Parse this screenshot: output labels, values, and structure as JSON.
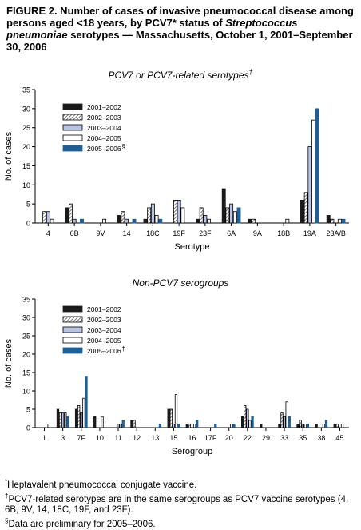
{
  "figure": {
    "title_prefix": "FIGURE 2. Number of cases of invasive pneumococcal disease among persons aged <18 years, by PCV7* status of ",
    "title_species": "Streptococcus pneumoniae",
    "title_suffix": " serotypes — Massachusetts, October 1, 2001–September 30, 2006"
  },
  "chart_data": [
    {
      "type": "bar",
      "title": "PCV7 or PCV7-related serotypes",
      "title_mark": "†",
      "xlabel": "Serotype",
      "ylabel": "No. of cases",
      "ylim": [
        0,
        35
      ],
      "yticks": [
        0,
        5,
        10,
        15,
        20,
        25,
        30,
        35
      ],
      "legend_position": "top-left",
      "categories": [
        "4",
        "6B",
        "9V",
        "14",
        "18C",
        "19F",
        "23F",
        "6A",
        "9A",
        "18B",
        "19A",
        "23A/B"
      ],
      "series": [
        {
          "name": "2001–2002",
          "values": [
            0,
            4,
            0,
            2,
            1,
            0,
            1,
            9,
            1,
            0,
            6,
            2
          ]
        },
        {
          "name": "2002–2003",
          "values": [
            3,
            5,
            0,
            3,
            4,
            6,
            4,
            4,
            1,
            0,
            8,
            1
          ]
        },
        {
          "name": "2003–2004",
          "values": [
            3,
            1,
            0,
            1,
            5,
            6,
            2,
            5,
            0,
            0,
            20,
            0
          ]
        },
        {
          "name": "2004–2005",
          "values": [
            1,
            0,
            1,
            0,
            2,
            4,
            1,
            3,
            0,
            1,
            27,
            1
          ]
        },
        {
          "name": "2005–2006",
          "name_mark": "§",
          "values": [
            0,
            1,
            0,
            1,
            1,
            0,
            0,
            4,
            0,
            0,
            30,
            1
          ]
        }
      ]
    },
    {
      "type": "bar",
      "title": "Non-PCV7 serogroups",
      "xlabel": "Serogroup",
      "ylabel": "No. of cases",
      "ylim": [
        0,
        35
      ],
      "yticks": [
        0,
        5,
        10,
        15,
        20,
        25,
        30,
        35
      ],
      "legend_position": "top-left",
      "categories": [
        "1",
        "3",
        "7F",
        "10",
        "11",
        "12",
        "13",
        "15",
        "16",
        "17F",
        "20",
        "22",
        "29",
        "33",
        "35",
        "38",
        "45"
      ],
      "series": [
        {
          "name": "2001–2002",
          "values": [
            0,
            5,
            5,
            3,
            0,
            2,
            0,
            5,
            1,
            0,
            0,
            3,
            1,
            1,
            1,
            1,
            1
          ]
        },
        {
          "name": "2002–2003",
          "values": [
            0,
            4,
            6,
            0,
            0,
            2,
            0,
            5,
            1,
            0,
            0,
            6,
            0,
            4,
            2,
            0,
            1
          ]
        },
        {
          "name": "2003–2004",
          "values": [
            0,
            4,
            4,
            0,
            1,
            0,
            0,
            1,
            0,
            0,
            0,
            5,
            0,
            3,
            1,
            0,
            0
          ]
        },
        {
          "name": "2004–2005",
          "values": [
            1,
            4,
            8,
            3,
            1,
            0,
            0,
            9,
            1,
            0,
            1,
            2,
            0,
            7,
            1,
            1,
            1
          ]
        },
        {
          "name": "2005–2006",
          "name_mark": "†",
          "values": [
            0,
            3,
            14,
            0,
            2,
            0,
            1,
            1,
            2,
            1,
            1,
            3,
            0,
            3,
            1,
            2,
            0
          ]
        }
      ]
    }
  ],
  "footnotes": [
    {
      "mark": "*",
      "text": "Heptavalent pneumococcal conjugate vaccine."
    },
    {
      "mark": "†",
      "text": "PCV7-related serotypes are in the same serogroups as PCV7 vaccine serotypes (4, 6B, 9V, 14, 18C, 19F, and 23F)."
    },
    {
      "mark": "§",
      "text": "Data are preliminary for 2005–2006."
    }
  ],
  "colors": {
    "s2001": "#1a1a1a",
    "s2002_hatch": "#555555",
    "s2003": "#b9c3e4",
    "s2004": "#ffffff",
    "s2005": "#1f5f96",
    "axis": "#000000"
  }
}
